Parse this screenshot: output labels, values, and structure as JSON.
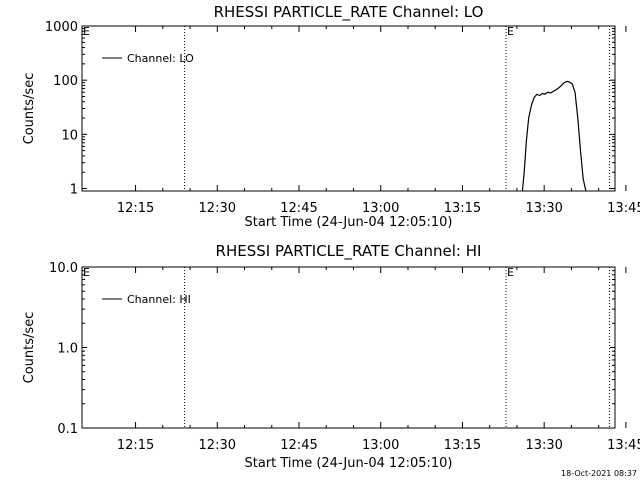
{
  "footer_timestamp": "18-Oct-2021 08:37",
  "chart_data": [
    {
      "type": "line",
      "title": "RHESSI PARTICLE_RATE Channel: LO",
      "xlabel": "Start Time (24-Jun-04 12:05:10)",
      "ylabel": "Counts/sec",
      "yscale": "log",
      "ylim": [
        0.9,
        1000
      ],
      "xlim_minutes": [
        5.17,
        103.0
      ],
      "x_ticks": [
        "12:15",
        "12:30",
        "12:45",
        "13:00",
        "13:15",
        "13:30",
        "13:45"
      ],
      "y_ticks": [
        {
          "value": 1,
          "label": "1"
        },
        {
          "value": 10,
          "label": "10"
        },
        {
          "value": 100,
          "label": "100"
        },
        {
          "value": 1000,
          "label": "1000"
        }
      ],
      "legend": {
        "label": "Channel: LO",
        "position": "top-left"
      },
      "eclipse_marker": "E",
      "dotted_times": [
        "12:24",
        "13:23",
        "13:42"
      ],
      "series": [
        {
          "x": [
            "13:26:00",
            "13:26:20",
            "13:26:45",
            "13:27:10",
            "13:27:40",
            "13:28:10",
            "13:28:40",
            "13:29:10",
            "13:29:40",
            "13:30:10",
            "13:30:40",
            "13:31:10",
            "13:31:40",
            "13:32:10",
            "13:32:40",
            "13:33:10",
            "13:33:40",
            "13:34:10",
            "13:34:40",
            "13:35:10",
            "13:35:40",
            "13:36:10",
            "13:36:40",
            "13:37:10",
            "13:37:40"
          ],
          "y": [
            0.9,
            2,
            8,
            20,
            35,
            48,
            55,
            52,
            57,
            55,
            60,
            58,
            62,
            66,
            72,
            80,
            90,
            95,
            92,
            85,
            60,
            20,
            5,
            1.5,
            0.9
          ]
        }
      ]
    },
    {
      "type": "line",
      "title": "RHESSI PARTICLE_RATE Channel: HI",
      "xlabel": "Start Time (24-Jun-04 12:05:10)",
      "ylabel": "Counts/sec",
      "yscale": "log",
      "ylim": [
        0.1,
        10
      ],
      "xlim_minutes": [
        5.17,
        103.0
      ],
      "x_ticks": [
        "12:15",
        "12:30",
        "12:45",
        "13:00",
        "13:15",
        "13:30",
        "13:45"
      ],
      "y_ticks": [
        {
          "value": 0.1,
          "label": "0.1"
        },
        {
          "value": 1,
          "label": "1.0"
        },
        {
          "value": 10,
          "label": "10.0"
        }
      ],
      "legend": {
        "label": "Channel: HI",
        "position": "top-left"
      },
      "eclipse_marker": "E",
      "dotted_times": [
        "12:24",
        "13:23",
        "13:42"
      ],
      "series": []
    }
  ]
}
